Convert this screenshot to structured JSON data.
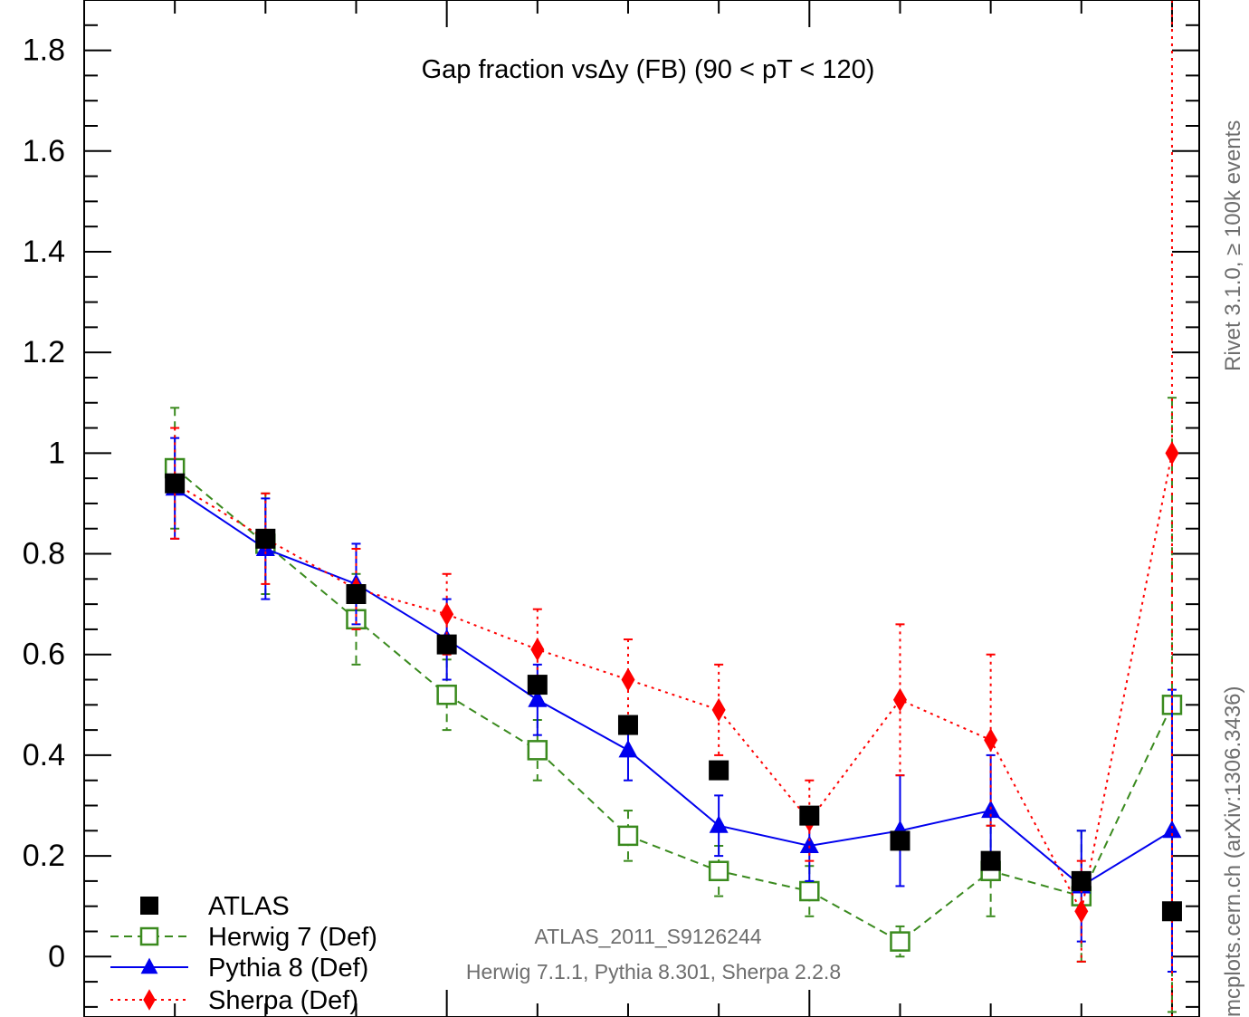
{
  "chart_data": {
    "type": "scatter",
    "title": "Gap fraction vsΔy (FB) (90 < pT < 120)",
    "xlabel": "",
    "ylabel": "",
    "ylim": [
      -0.12,
      1.9
    ],
    "y_ticks": [
      "0",
      "0.2",
      "0.4",
      "0.6",
      "0.8",
      "1",
      "1.2",
      "1.4",
      "1.6",
      "1.8"
    ],
    "x": [
      0.5,
      1.0,
      1.5,
      2.0,
      2.5,
      3.0,
      3.5,
      4.0,
      4.5,
      5.0,
      5.5,
      6.0
    ],
    "series": [
      {
        "name": "ATLAS",
        "color": "#000000",
        "marker": "square",
        "line": "none",
        "values": [
          0.94,
          0.83,
          0.72,
          0.62,
          0.54,
          0.46,
          0.37,
          0.28,
          0.23,
          0.19,
          0.15,
          0.09
        ],
        "err": [
          0,
          0,
          0,
          0,
          0,
          0,
          0,
          0,
          0,
          0,
          0,
          0
        ]
      },
      {
        "name": "Herwig 7 (Def)",
        "color": "#3a8a1e",
        "marker": "open-square",
        "line": "dashed",
        "values": [
          0.97,
          0.82,
          0.67,
          0.52,
          0.41,
          0.24,
          0.17,
          0.13,
          0.03,
          0.17,
          0.12,
          0.5
        ],
        "err": [
          0.12,
          0.1,
          0.09,
          0.07,
          0.06,
          0.05,
          0.05,
          0.05,
          0.03,
          0.09,
          0.13,
          0.61
        ]
      },
      {
        "name": "Pythia 8 (Def)",
        "color": "#0000ee",
        "marker": "triangle",
        "line": "solid",
        "values": [
          0.93,
          0.81,
          0.74,
          0.63,
          0.51,
          0.41,
          0.26,
          0.22,
          0.25,
          0.29,
          0.14,
          0.25
        ],
        "err": [
          0.1,
          0.1,
          0.08,
          0.08,
          0.07,
          0.06,
          0.06,
          0.07,
          0.11,
          0.11,
          0.11,
          0.28
        ]
      },
      {
        "name": "Sherpa (Def)",
        "color": "#ff0000",
        "marker": "diamond",
        "line": "dotted",
        "values": [
          0.94,
          0.83,
          0.73,
          0.68,
          0.61,
          0.55,
          0.49,
          0.27,
          0.51,
          0.43,
          0.09,
          1.0
        ],
        "err": [
          0.11,
          0.09,
          0.08,
          0.08,
          0.08,
          0.08,
          0.09,
          0.08,
          0.15,
          0.17,
          0.1,
          1.2
        ]
      }
    ],
    "legend_position": "bottom-left",
    "annotations": {
      "analysis": "ATLAS_2011_S9126244",
      "generators": "Herwig 7.1.1, Pythia 8.301, Sherpa 2.2.8",
      "side_upper": "Rivet 3.1.0, ≥ 100k events",
      "side_lower": "mcplots.cern.ch (arXiv:1306.3436)"
    }
  }
}
